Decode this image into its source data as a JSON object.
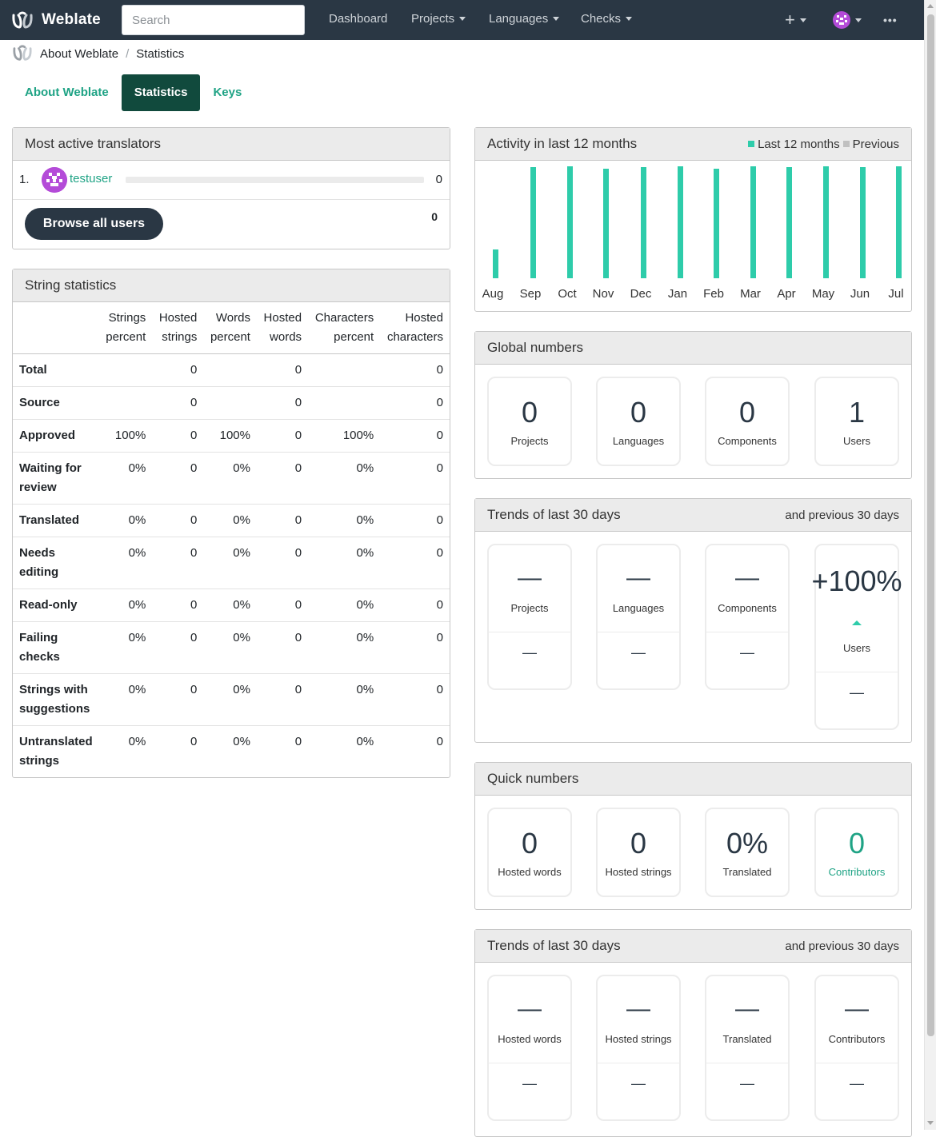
{
  "app": {
    "name": "Weblate"
  },
  "nav": {
    "search_placeholder": "Search",
    "dashboard": "Dashboard",
    "projects": "Projects",
    "languages": "Languages",
    "checks": "Checks",
    "add": "+",
    "more": "•••"
  },
  "breadcrumb": {
    "items": [
      "About Weblate",
      "Statistics"
    ]
  },
  "tabs": [
    {
      "label": "About Weblate",
      "active": false
    },
    {
      "label": "Statistics",
      "active": true
    },
    {
      "label": "Keys",
      "active": false
    }
  ],
  "most_active": {
    "title": "Most active translators",
    "users": [
      {
        "rank": "1.",
        "name": "testuser",
        "count": "0"
      }
    ],
    "browse_label": "Browse all users",
    "total": "0"
  },
  "string_stats": {
    "title": "String statistics",
    "columns": [
      {
        "line1": "Strings",
        "line2": "percent"
      },
      {
        "line1": "Hosted",
        "line2": "strings"
      },
      {
        "line1": "Words",
        "line2": "percent"
      },
      {
        "line1": "Hosted",
        "line2": "words"
      },
      {
        "line1": "Characters",
        "line2": "percent"
      },
      {
        "line1": "Hosted",
        "line2": "characters"
      }
    ],
    "rows": [
      {
        "label": "Total",
        "cells": [
          "",
          "0",
          "",
          "0",
          "",
          "0"
        ]
      },
      {
        "label": "Source",
        "cells": [
          "",
          "0",
          "",
          "0",
          "",
          "0"
        ]
      },
      {
        "label": "Approved",
        "cells": [
          "100%",
          "0",
          "100%",
          "0",
          "100%",
          "0"
        ]
      },
      {
        "label": "Waiting for review",
        "cells": [
          "0%",
          "0",
          "0%",
          "0",
          "0%",
          "0"
        ]
      },
      {
        "label": "Translated",
        "cells": [
          "0%",
          "0",
          "0%",
          "0",
          "0%",
          "0"
        ]
      },
      {
        "label": "Needs editing",
        "cells": [
          "0%",
          "0",
          "0%",
          "0",
          "0%",
          "0"
        ]
      },
      {
        "label": "Read-only",
        "cells": [
          "0%",
          "0",
          "0%",
          "0",
          "0%",
          "0"
        ]
      },
      {
        "label": "Failing checks",
        "cells": [
          "0%",
          "0",
          "0%",
          "0",
          "0%",
          "0"
        ]
      },
      {
        "label": "Strings with suggestions",
        "cells": [
          "0%",
          "0",
          "0%",
          "0",
          "0%",
          "0"
        ]
      },
      {
        "label": "Untranslated strings",
        "cells": [
          "0%",
          "0",
          "0%",
          "0",
          "0%",
          "0"
        ]
      }
    ]
  },
  "activity": {
    "title": "Activity in last 12 months",
    "legend": {
      "current": "Last 12 months",
      "previous": "Previous"
    },
    "colors": {
      "current": "#2eccaa",
      "previous": "#c0c0c0"
    }
  },
  "chart_data": {
    "type": "bar",
    "categories": [
      "Aug",
      "Sep",
      "Oct",
      "Nov",
      "Dec",
      "Jan",
      "Feb",
      "Mar",
      "Apr",
      "May",
      "Jun",
      "Jul"
    ],
    "series": [
      {
        "name": "Last 12 months",
        "values": [
          0.26,
          0.99,
          1.0,
          0.98,
          0.99,
          1.0,
          0.98,
          1.0,
          0.99,
          1.0,
          0.99,
          1.0
        ]
      },
      {
        "name": "Previous",
        "values": [
          0,
          0,
          0,
          0,
          0,
          0,
          0,
          0,
          0,
          0,
          0,
          0
        ]
      }
    ],
    "title": "Activity in last 12 months",
    "legend_position": "top-right"
  },
  "global_numbers": {
    "title": "Global numbers",
    "cards": [
      {
        "value": "0",
        "label": "Projects"
      },
      {
        "value": "0",
        "label": "Languages"
      },
      {
        "value": "0",
        "label": "Components"
      },
      {
        "value": "1",
        "label": "Users"
      }
    ]
  },
  "trends1": {
    "title": "Trends of last 30 days",
    "aside": "and previous 30 days",
    "cards": [
      {
        "value": "—",
        "label": "Projects",
        "prev": "—"
      },
      {
        "value": "—",
        "label": "Languages",
        "prev": "—"
      },
      {
        "value": "—",
        "label": "Components",
        "prev": "—"
      },
      {
        "value": "+100%",
        "label": "Users",
        "prev": "—"
      }
    ]
  },
  "quick_numbers": {
    "title": "Quick numbers",
    "cards": [
      {
        "value": "0",
        "label": "Hosted words"
      },
      {
        "value": "0",
        "label": "Hosted strings"
      },
      {
        "value": "0%",
        "label": "Translated"
      },
      {
        "value": "0",
        "label": "Contributors"
      }
    ],
    "link_color": "#1fa385"
  },
  "trends2": {
    "title": "Trends of last 30 days",
    "aside": "and previous 30 days",
    "cards": [
      {
        "value": "—",
        "label": "Hosted words",
        "prev": "—"
      },
      {
        "value": "—",
        "label": "Hosted strings",
        "prev": "—"
      },
      {
        "value": "—",
        "label": "Translated",
        "prev": "—"
      },
      {
        "value": "—",
        "label": "Contributors",
        "prev": "—"
      }
    ]
  }
}
